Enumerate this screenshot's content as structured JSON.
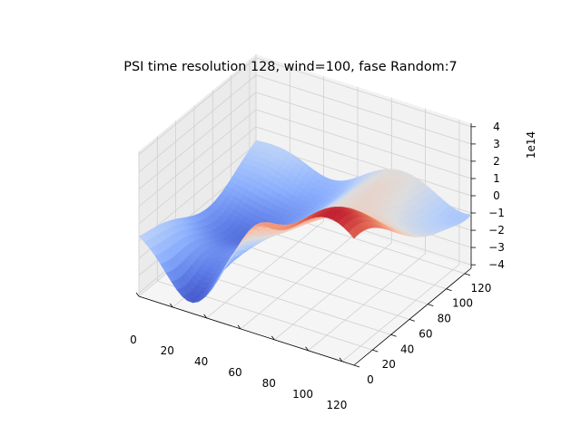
{
  "chart_data": {
    "type": "surface3d",
    "title": "PSI time resolution 128, wind=100, fase Random:7",
    "z_offset_label": "1e14",
    "x_axis": {
      "range": [
        0,
        127
      ],
      "ticks": [
        0,
        20,
        40,
        60,
        80,
        100,
        120
      ],
      "tick_labels": [
        "0",
        "20",
        "40",
        "60",
        "80",
        "100",
        "120"
      ]
    },
    "y_axis": {
      "range": [
        0,
        127
      ],
      "ticks": [
        0,
        20,
        40,
        60,
        80,
        100,
        120
      ],
      "tick_labels": [
        "0",
        "20",
        "40",
        "60",
        "80",
        "100",
        "120"
      ]
    },
    "z_axis": {
      "range": [
        -4.2,
        4.2
      ],
      "ticks": [
        -4,
        -3,
        -2,
        -1,
        0,
        1,
        2,
        3,
        4
      ],
      "tick_labels": [
        "−4",
        "−3",
        "−2",
        "−1",
        "0",
        "1",
        "2",
        "3",
        "4"
      ]
    },
    "colormap": "coolwarm",
    "grid": true,
    "surface_points_1e14": [
      {
        "x": 0,
        "y": 0,
        "z": -3.0
      },
      {
        "x": 20,
        "y": 0,
        "z": -3.3
      },
      {
        "x": 40,
        "y": 0,
        "z": -2.0
      },
      {
        "x": 60,
        "y": 0,
        "z": 1.0
      },
      {
        "x": 80,
        "y": 0,
        "z": 3.5
      },
      {
        "x": 100,
        "y": 0,
        "z": 4.0
      },
      {
        "x": 127,
        "y": 0,
        "z": 4.2
      },
      {
        "x": 0,
        "y": 127,
        "z": -2.0
      },
      {
        "x": 60,
        "y": 127,
        "z": -3.3
      },
      {
        "x": 127,
        "y": 127,
        "z": -3.2
      }
    ]
  }
}
